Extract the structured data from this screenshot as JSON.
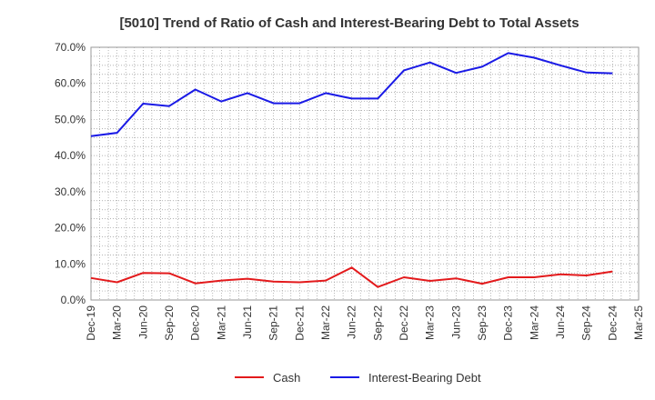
{
  "chart_data": {
    "type": "line",
    "title": "[5010]  Trend of Ratio of Cash and Interest-Bearing Debt to Total Assets",
    "xlabel": "",
    "ylabel": "",
    "categories": [
      "Dec-19",
      "Mar-20",
      "Jun-20",
      "Sep-20",
      "Dec-20",
      "Mar-21",
      "Jun-21",
      "Sep-21",
      "Dec-21",
      "Mar-22",
      "Jun-22",
      "Sep-22",
      "Dec-22",
      "Mar-23",
      "Jun-23",
      "Sep-23",
      "Dec-23",
      "Mar-24",
      "Jun-24",
      "Sep-24",
      "Dec-24",
      "Mar-25"
    ],
    "ylim": [
      0,
      70
    ],
    "yticks": [
      0,
      10,
      20,
      30,
      40,
      50,
      60,
      70
    ],
    "ytick_labels": [
      "0.0%",
      "10.0%",
      "20.0%",
      "30.0%",
      "40.0%",
      "50.0%",
      "60.0%",
      "70.0%"
    ],
    "grid": true,
    "legend_position": "bottom",
    "series": [
      {
        "name": "Cash",
        "color": "#e31a1c",
        "values": [
          6.1,
          4.9,
          7.5,
          7.4,
          4.6,
          5.4,
          5.9,
          5.1,
          4.9,
          5.4,
          9.0,
          3.6,
          6.3,
          5.3,
          6.0,
          4.5,
          6.3,
          6.3,
          7.1,
          6.8,
          7.9,
          null
        ]
      },
      {
        "name": "Interest-Bearing Debt",
        "color": "#1a1ae6",
        "values": [
          45.4,
          46.3,
          54.4,
          53.7,
          58.3,
          55.0,
          57.3,
          54.5,
          54.5,
          57.3,
          55.8,
          55.8,
          63.6,
          65.8,
          62.9,
          64.6,
          68.4,
          67.1,
          65.0,
          63.0,
          62.8,
          null
        ]
      }
    ]
  }
}
